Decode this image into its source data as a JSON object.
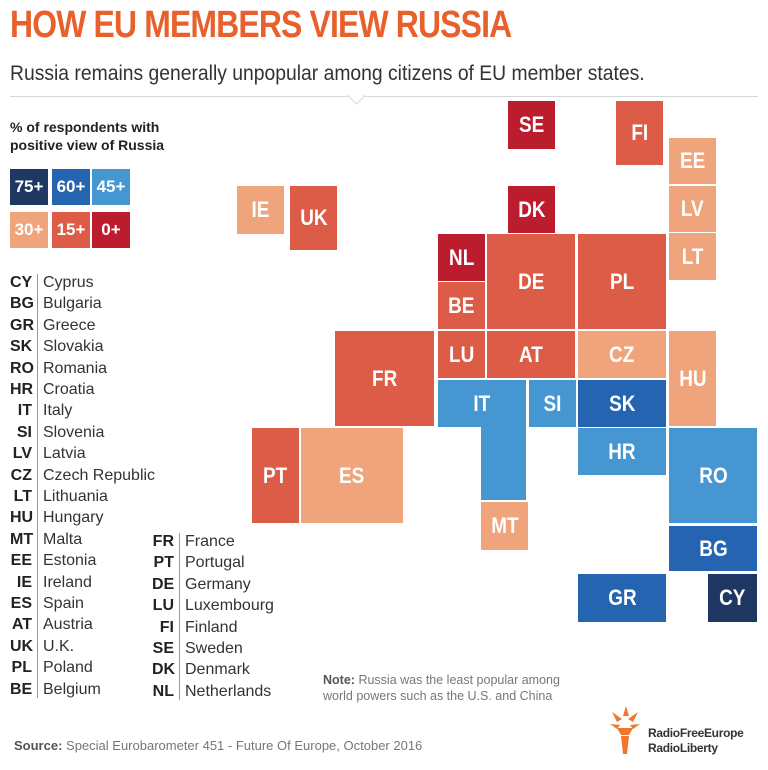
{
  "header": {
    "title": "HOW EU MEMBERS VIEW RUSSIA",
    "subtitle": "Russia remains generally unpopular among citizens of EU member states."
  },
  "legend": {
    "title": "% of respondents with positive view of Russia",
    "bins": [
      {
        "label": "75+",
        "color": "#1f3863"
      },
      {
        "label": "60+",
        "color": "#2464b0"
      },
      {
        "label": "45+",
        "color": "#4596d1"
      },
      {
        "label": "30+",
        "color": "#f0a47c"
      },
      {
        "label": "15+",
        "color": "#dc5c47"
      },
      {
        "label": "0+",
        "color": "#bb1c2e"
      }
    ]
  },
  "countries_left": [
    {
      "code": "CY",
      "name": "Cyprus"
    },
    {
      "code": "BG",
      "name": "Bulgaria"
    },
    {
      "code": "GR",
      "name": "Greece"
    },
    {
      "code": "SK",
      "name": "Slovakia"
    },
    {
      "code": "RO",
      "name": "Romania"
    },
    {
      "code": "HR",
      "name": "Croatia"
    },
    {
      "code": "IT",
      "name": "Italy"
    },
    {
      "code": "SI",
      "name": "Slovenia"
    },
    {
      "code": "LV",
      "name": "Latvia"
    },
    {
      "code": "CZ",
      "name": "Czech Republic"
    },
    {
      "code": "LT",
      "name": "Lithuania"
    },
    {
      "code": "HU",
      "name": "Hungary"
    },
    {
      "code": "MT",
      "name": "Malta"
    },
    {
      "code": "EE",
      "name": "Estonia"
    },
    {
      "code": "IE",
      "name": "Ireland"
    },
    {
      "code": "ES",
      "name": "Spain"
    },
    {
      "code": "AT",
      "name": "Austria"
    },
    {
      "code": "UK",
      "name": "U.K."
    },
    {
      "code": "PL",
      "name": "Poland"
    },
    {
      "code": "BE",
      "name": "Belgium"
    }
  ],
  "countries_right": [
    {
      "code": "FR",
      "name": "France"
    },
    {
      "code": "PT",
      "name": "Portugal"
    },
    {
      "code": "DE",
      "name": "Germany"
    },
    {
      "code": "LU",
      "name": "Luxembourg"
    },
    {
      "code": "FI",
      "name": "Finland"
    },
    {
      "code": "SE",
      "name": "Sweden"
    },
    {
      "code": "DK",
      "name": "Denmark"
    },
    {
      "code": "NL",
      "name": "Netherlands"
    }
  ],
  "tiles": [
    {
      "code": "SE",
      "bin": "0+"
    },
    {
      "code": "FI",
      "bin": "15+"
    },
    {
      "code": "EE",
      "bin": "30+"
    },
    {
      "code": "LV",
      "bin": "30+"
    },
    {
      "code": "LT",
      "bin": "30+"
    },
    {
      "code": "IE",
      "bin": "30+"
    },
    {
      "code": "UK",
      "bin": "15+"
    },
    {
      "code": "DK",
      "bin": "0+"
    },
    {
      "code": "NL",
      "bin": "0+"
    },
    {
      "code": "BE",
      "bin": "15+"
    },
    {
      "code": "DE",
      "bin": "15+"
    },
    {
      "code": "PL",
      "bin": "15+"
    },
    {
      "code": "FR",
      "bin": "15+"
    },
    {
      "code": "LU",
      "bin": "15+"
    },
    {
      "code": "AT",
      "bin": "15+"
    },
    {
      "code": "CZ",
      "bin": "30+"
    },
    {
      "code": "HU",
      "bin": "30+"
    },
    {
      "code": "IT",
      "bin": "45+"
    },
    {
      "code": "SI",
      "bin": "45+"
    },
    {
      "code": "SK",
      "bin": "60+"
    },
    {
      "code": "HR",
      "bin": "45+"
    },
    {
      "code": "PT",
      "bin": "15+"
    },
    {
      "code": "ES",
      "bin": "30+"
    },
    {
      "code": "RO",
      "bin": "45+"
    },
    {
      "code": "MT",
      "bin": "30+"
    },
    {
      "code": "BG",
      "bin": "60+"
    },
    {
      "code": "GR",
      "bin": "60+"
    },
    {
      "code": "CY",
      "bin": "75+"
    }
  ],
  "note": {
    "label": "Note:",
    "text": "Russia was the least popular among world powers such as the U.S. and China"
  },
  "source": {
    "label": "Source:",
    "text": "Special Eurobarometer 451 - Future Of Europe, October 2016"
  },
  "logo": {
    "line1": "RadioFreeEurope",
    "line2": "RadioLiberty",
    "color": "#f0772b"
  }
}
